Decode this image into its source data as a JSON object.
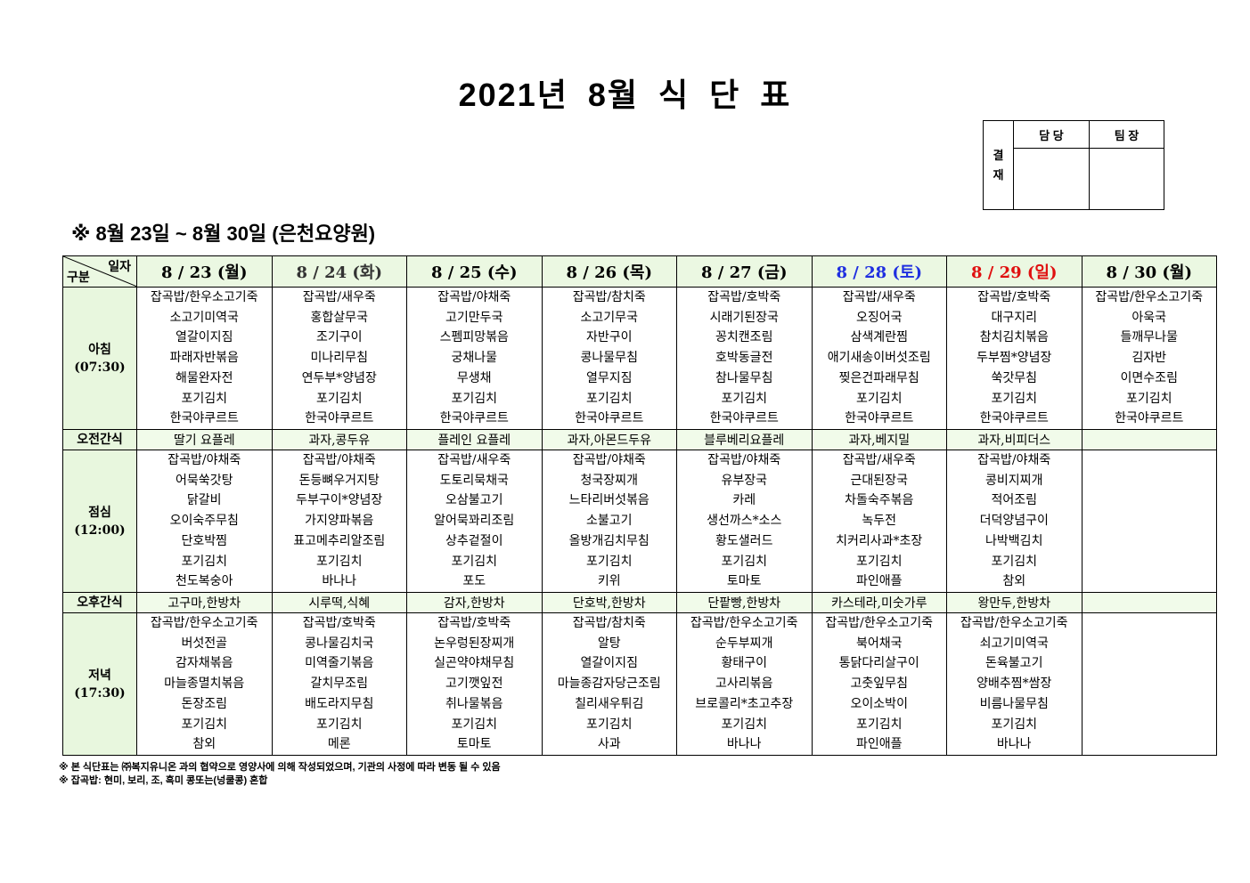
{
  "title": "2021년 8월 식 단 표",
  "approval": {
    "label": "결\n재",
    "label_lines": [
      "결",
      "재"
    ],
    "columns": [
      "담 당",
      "팀 장"
    ]
  },
  "subtitle": "※ 8월 23일 ~ 8월 30일 (은천요양원)",
  "corner": {
    "top": "일자",
    "bottom": "구분"
  },
  "colors": {
    "header_bg": "#ebf8e2",
    "label_bg": "#e8f7de",
    "snack_bg": "#f1fbea",
    "saturday": "#1f2fe0",
    "sunday": "#e01010"
  },
  "days": [
    {
      "date": "8 / 23 (월)",
      "color": "#000000"
    },
    {
      "date": "8 / 24 (화)",
      "color": "#333333"
    },
    {
      "date": "8 / 25 (수)",
      "color": "#000000"
    },
    {
      "date": "8 / 26 (목)",
      "color": "#000000"
    },
    {
      "date": "8 / 27 (금)",
      "color": "#000000"
    },
    {
      "date": "8 / 28 (토)",
      "color": "#1f2fe0"
    },
    {
      "date": "8 / 29 (일)",
      "color": "#e01010"
    },
    {
      "date": "8 / 30 (월)",
      "color": "#000000"
    }
  ],
  "rows": [
    {
      "type": "meal",
      "label": "아침",
      "time": "(07:30)",
      "cells": [
        [
          "잡곡밥/한우소고기죽",
          "소고기미역국",
          "열갈이지짐",
          "파래자반볶음",
          "해물완자전",
          "포기김치",
          "한국야쿠르트"
        ],
        [
          "잡곡밥/새우죽",
          "홍합살무국",
          "조기구이",
          "미나리무침",
          "연두부*양념장",
          "포기김치",
          "한국야쿠르트"
        ],
        [
          "잡곡밥/야채죽",
          "고기만두국",
          "스펨피망볶음",
          "궁채나물",
          "무생채",
          "포기김치",
          "한국야쿠르트"
        ],
        [
          "잡곡밥/참치죽",
          "소고기무국",
          "자반구이",
          "콩나물무침",
          "열무지짐",
          "포기김치",
          "한국야쿠르트"
        ],
        [
          "잡곡밥/호박죽",
          "시래기된장국",
          "꽁치캔조림",
          "호박동글전",
          "참나물무침",
          "포기김치",
          "한국야쿠르트"
        ],
        [
          "잡곡밥/새우죽",
          "오징어국",
          "삼색계란찜",
          "애기새송이버섯조림",
          "찢은건파래무침",
          "포기김치",
          "한국야쿠르트"
        ],
        [
          "잡곡밥/호박죽",
          "대구지리",
          "참치김치볶음",
          "두부찜*양념장",
          "쑥갓무침",
          "포기김치",
          "한국야쿠르트"
        ],
        [
          "잡곡밥/한우소고기죽",
          "아욱국",
          "들깨무나물",
          "김자반",
          "이면수조림",
          "포기김치",
          "한국야쿠르트"
        ]
      ]
    },
    {
      "type": "snack",
      "label": "오전간식",
      "cells": [
        "딸기 요플레",
        "과자,콩두유",
        "플레인 요플레",
        "과자,아몬드두유",
        "블루베리요플레",
        "과자,베지밀",
        "과자,비피더스",
        ""
      ]
    },
    {
      "type": "meal",
      "label": "점심",
      "time": "(12:00)",
      "cells": [
        [
          "잡곡밥/야채죽",
          "어묵쑥갓탕",
          "닭갈비",
          "오이숙주무침",
          "단호박찜",
          "포기김치",
          "천도복숭아"
        ],
        [
          "잡곡밥/야채죽",
          "돈등뼈우거지탕",
          "두부구이*양념장",
          "가지양파볶음",
          "표고메추리알조림",
          "포기김치",
          "바나나"
        ],
        [
          "잡곡밥/새우죽",
          "도토리묵채국",
          "오삼불고기",
          "알어묵꽈리조림",
          "상추겉절이",
          "포기김치",
          "포도"
        ],
        [
          "잡곡밥/야채죽",
          "청국장찌개",
          "느타리버섯볶음",
          "소불고기",
          "올방개김치무침",
          "포기김치",
          "키위"
        ],
        [
          "잡곡밥/야채죽",
          "유부장국",
          "카레",
          "생선까스*소스",
          "황도샐러드",
          "포기김치",
          "토마토"
        ],
        [
          "잡곡밥/새우죽",
          "근대된장국",
          "차돌숙주볶음",
          "녹두전",
          "치커리사과*초장",
          "포기김치",
          "파인애플"
        ],
        [
          "잡곡밥/야채죽",
          "콩비지찌개",
          "적어조림",
          "더덕양념구이",
          "나박백김치",
          "포기김치",
          "참외"
        ],
        []
      ]
    },
    {
      "type": "snack",
      "label": "오후간식",
      "cells": [
        "고구마,한방차",
        "시루떡,식혜",
        "감자,한방차",
        "단호박,한방차",
        "단팥빵,한방차",
        "카스테라,미숫가루",
        "왕만두,한방차",
        ""
      ]
    },
    {
      "type": "meal",
      "label": "저녁",
      "time": "(17:30)",
      "cells": [
        [
          "잡곡밥/한우소고기죽",
          "버섯전골",
          "감자채볶음",
          "마늘종멸치볶음",
          "돈장조림",
          "포기김치",
          "참외"
        ],
        [
          "잡곡밥/호박죽",
          "콩나물김치국",
          "미역줄기볶음",
          "갈치무조림",
          "배도라지무침",
          "포기김치",
          "메론"
        ],
        [
          "잡곡밥/호박죽",
          "논우렁된장찌개",
          "실곤약야채무침",
          "고기깻잎전",
          "취나물볶음",
          "포기김치",
          "토마토"
        ],
        [
          "잡곡밥/참치죽",
          "알탕",
          "열갈이지짐",
          "마늘종감자당근조림",
          "칠리새우튀김",
          "포기김치",
          "사과"
        ],
        [
          "잡곡밥/한우소고기죽",
          "순두부찌개",
          "황태구이",
          "고사리볶음",
          "브로콜리*초고추장",
          "포기김치",
          "바나나"
        ],
        [
          "잡곡밥/한우소고기죽",
          "북어채국",
          "통닭다리살구이",
          "고춧잎무침",
          "오이소박이",
          "포기김치",
          "파인애플"
        ],
        [
          "잡곡밥/한우소고기죽",
          "쇠고기미역국",
          "돈육불고기",
          "양배추찜*쌈장",
          "비름나물무침",
          "포기김치",
          "바나나"
        ],
        []
      ]
    }
  ],
  "notes": [
    "※ 본 식단표는 ㈜복지유니온 과의 협약으로 영양사에 의해 작성되었으며, 기관의 사정에 따라 변동 될 수 있음",
    "※ 잡곡밥: 현미, 보리, 조, 흑미 콩또는(넝쿨콩) 혼합"
  ]
}
